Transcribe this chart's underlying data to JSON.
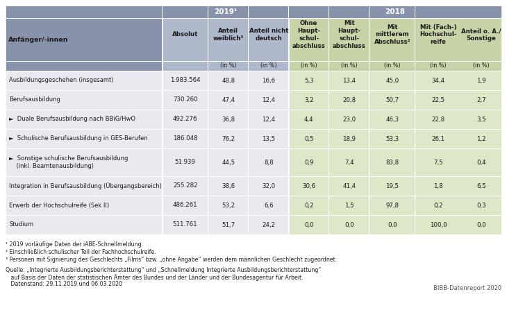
{
  "header_color": "#8892aa",
  "subheader_2019_color": "#b0b8cc",
  "subheader_2018_color": "#c8d4a8",
  "cell_2019_color": "#e8eaf0",
  "cell_2018_color": "#dce8c8",
  "label_col_color": "#e8eaf0",
  "white": "#ffffff",
  "text_dark": "#1a1a1a",
  "col_widths_rel": [
    2.8,
    0.82,
    0.72,
    0.72,
    0.72,
    0.72,
    0.82,
    0.82,
    0.72
  ],
  "rows": [
    {
      "label": "Ausbildungsgeschehen (insgesamt)",
      "sub": false,
      "values": [
        "1.983.564",
        "48,8",
        "16,6",
        "5,3",
        "13,4",
        "45,0",
        "34,4",
        "1,9"
      ]
    },
    {
      "label": "Berufsausbildung",
      "sub": false,
      "values": [
        "730.260",
        "47,4",
        "12,4",
        "3,2",
        "20,8",
        "50,7",
        "22,5",
        "2,7"
      ]
    },
    {
      "label": "►  Duale Berufsausbildung nach BBiG/HwO",
      "sub": true,
      "values": [
        "492.276",
        "36,8",
        "12,4",
        "4,4",
        "23,0",
        "46,3",
        "22,8",
        "3,5"
      ]
    },
    {
      "label": "►  Schulische Berufsausbildung in GES-Berufen",
      "sub": true,
      "values": [
        "186.048",
        "76,2",
        "13,5",
        "0,5",
        "18,9",
        "53,3",
        "26,1",
        "1,2"
      ]
    },
    {
      "label": "►  Sonstige schulische Berufsausbildung\n    (inkl. Beamtenausbildung)",
      "sub": true,
      "values": [
        "51.939",
        "44,5",
        "8,8",
        "0,9",
        "7,4",
        "83,8",
        "7,5",
        "0,4"
      ]
    },
    {
      "label": "Integration in Berufsausbildung (Übergangsbereich)",
      "sub": false,
      "values": [
        "255.282",
        "38,6",
        "32,0",
        "30,6",
        "41,4",
        "19,5",
        "1,8",
        "6,5"
      ]
    },
    {
      "label": "Erwerb der Hochschulreife (Sek II)",
      "sub": false,
      "values": [
        "486.261",
        "53,2",
        "6,6",
        "0,2",
        "1,5",
        "97,8",
        "0,2",
        "0,3"
      ]
    },
    {
      "label": "Studium",
      "sub": false,
      "values": [
        "511.761",
        "51,7",
        "24,2",
        "0,0",
        "0,0",
        "0,0",
        "100,0",
        "0,0"
      ]
    }
  ],
  "fn1": "¹ 2019 vorläufige Daten der iABE-Schnellmeldung.",
  "fn2": "² Einschließlich schulischer Teil der Fachhochschulreife.",
  "fn3": "³ Personen mit Signierung des Geschlechts „Films“ bzw. „ohne Angabe“ werden dem männlichen Geschlecht zugeordnet.",
  "fn3_correct": "³ Personen mit Signierung des Geschlechts „Films“ bzw. „ohne Angabe“ werden dem männlichen Geschlecht zugeordnet.",
  "source1": "Quelle: „Integrierte Ausbildungsberichterstattung“ und „Schnellmeldung Integrierte Ausbildungsberichterstattung“",
  "source2": "   auf Basis der Daten der statistischen Ämter des Bundes und der Länder und der Bundesagentur für Arbeit.",
  "source3": "   Datenstand: 29.11.2019 und 06.03.2020",
  "bibb": "BIBB-Datenreport 2020"
}
